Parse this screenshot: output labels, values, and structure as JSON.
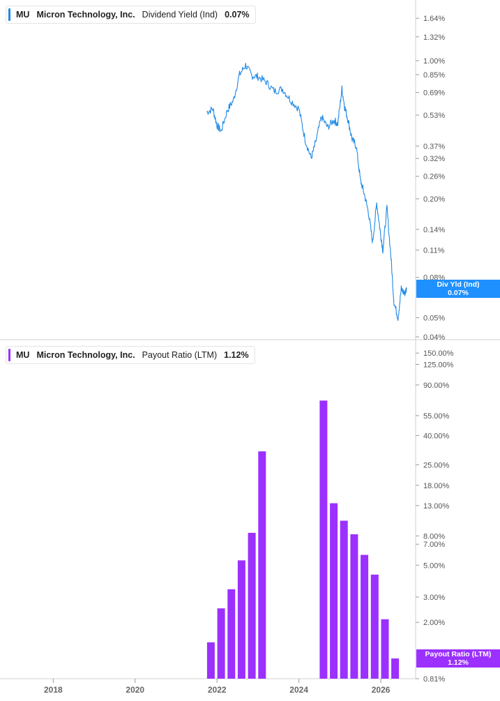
{
  "colors": {
    "yield_line": "#1e88e5",
    "payout_bar": "#9b30ff",
    "tag_blue": "#1e90ff",
    "tag_purple": "#9b30ff"
  },
  "top_panel": {
    "legend": {
      "ticker": "MU",
      "company": "Micron Technology, Inc.",
      "metric": "Dividend Yield (Ind)",
      "value": "0.07%"
    },
    "tag": {
      "line1": "Div Yld (Ind)",
      "line2": "0.07%"
    }
  },
  "bottom_panel": {
    "legend": {
      "ticker": "MU",
      "company": "Micron Technology, Inc.",
      "metric": "Payout Ratio (LTM)",
      "value": "1.12%"
    },
    "tag": {
      "line1": "Payout Ratio (LTM)",
      "line2": "1.12%"
    }
  },
  "x_axis": {
    "ticks": [
      "2018",
      "2020",
      "2022",
      "2024",
      "2026"
    ]
  },
  "chart_data": [
    {
      "type": "line",
      "series": [
        {
          "name": "Dividend Yield (Ind)"
        }
      ],
      "y_scale": "log",
      "ylim": [
        0.04,
        1.9
      ],
      "y_ticks": [
        "1.64%",
        "1.32%",
        "1.00%",
        "0.85%",
        "0.69%",
        "0.53%",
        "0.37%",
        "0.32%",
        "0.26%",
        "0.20%",
        "0.14%",
        "0.11%",
        "0.08%",
        "0.05%",
        "0.04%"
      ],
      "xlim": [
        2016.7,
        2026.85
      ],
      "x": [
        2021.75,
        2021.9,
        2022.0,
        2022.1,
        2022.25,
        2022.4,
        2022.55,
        2022.7,
        2022.85,
        2023.0,
        2023.2,
        2023.4,
        2023.6,
        2023.8,
        2024.0,
        2024.15,
        2024.3,
        2024.4,
        2024.55,
        2024.7,
        2024.85,
        2024.95,
        2025.05,
        2025.12,
        2025.2,
        2025.3,
        2025.4,
        2025.5,
        2025.6,
        2025.7,
        2025.8,
        2025.9,
        2025.98,
        2026.05,
        2026.15,
        2026.25,
        2026.32,
        2026.42,
        2026.5,
        2026.58,
        2026.63
      ],
      "y": [
        0.55,
        0.57,
        0.47,
        0.44,
        0.56,
        0.63,
        0.85,
        0.95,
        0.84,
        0.83,
        0.78,
        0.7,
        0.72,
        0.63,
        0.57,
        0.4,
        0.32,
        0.38,
        0.52,
        0.46,
        0.5,
        0.48,
        0.72,
        0.58,
        0.5,
        0.4,
        0.37,
        0.25,
        0.21,
        0.17,
        0.12,
        0.19,
        0.14,
        0.11,
        0.18,
        0.1,
        0.06,
        0.05,
        0.07,
        0.066,
        0.07
      ]
    },
    {
      "type": "bar",
      "series": [
        {
          "name": "Payout Ratio (LTM)"
        }
      ],
      "y_scale": "log",
      "ylim": [
        0.81,
        170
      ],
      "y_ticks": [
        "150.00%",
        "125.00%",
        "90.00%",
        "55.00%",
        "40.00%",
        "25.00%",
        "18.00%",
        "13.00%",
        "8.00%",
        "7.00%",
        "5.00%",
        "3.00%",
        "2.00%",
        "0.81%"
      ],
      "xlim": [
        2016.7,
        2026.85
      ],
      "x": [
        2021.85,
        2022.1,
        2022.35,
        2022.6,
        2022.85,
        2023.1,
        2024.6,
        2024.85,
        2025.1,
        2025.35,
        2025.6,
        2025.85,
        2026.1,
        2026.35
      ],
      "values": [
        1.45,
        2.5,
        3.4,
        5.4,
        8.4,
        31,
        70,
        13.5,
        10.2,
        8.2,
        5.9,
        4.3,
        2.1,
        1.12
      ]
    }
  ]
}
